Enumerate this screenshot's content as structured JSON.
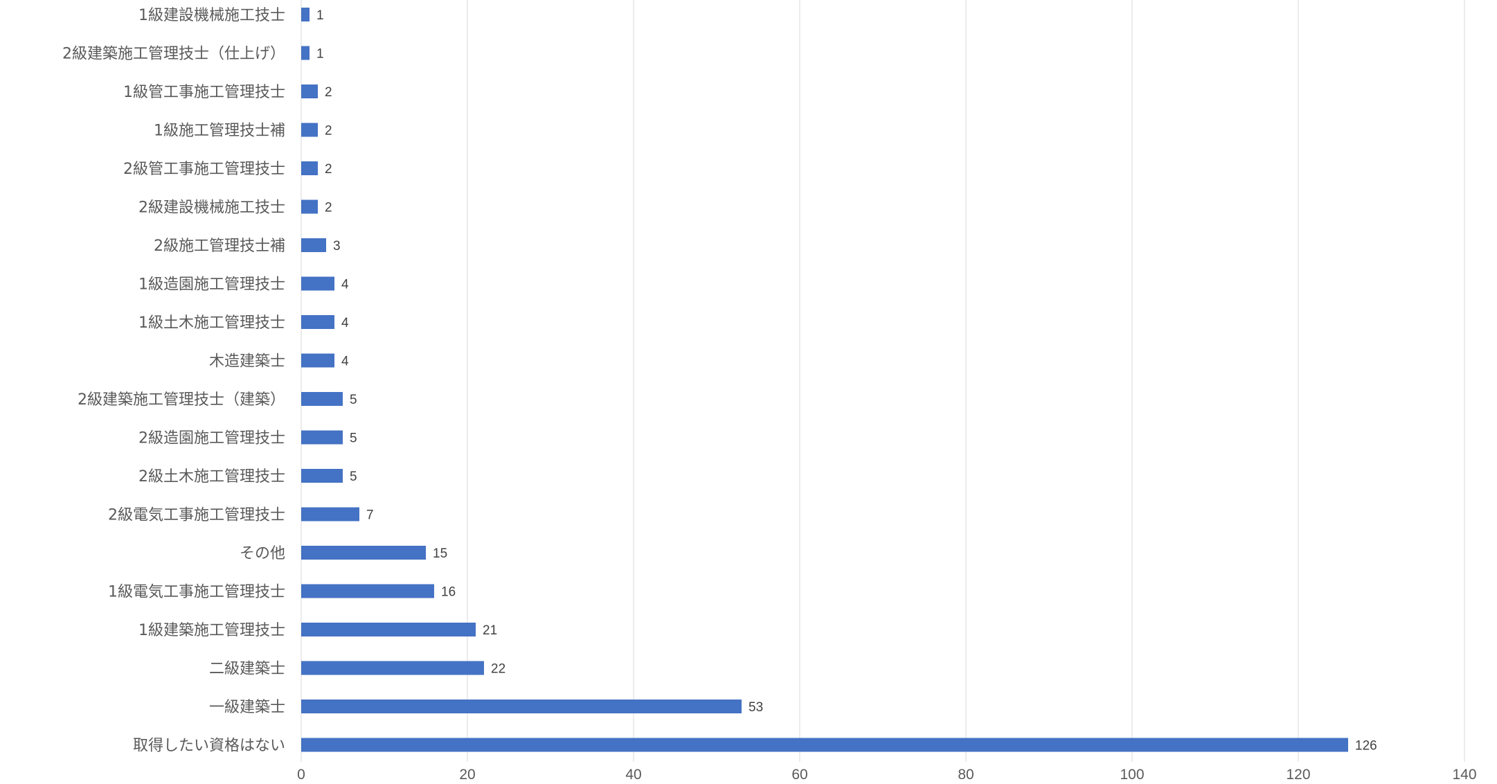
{
  "chart_data": {
    "type": "bar",
    "orientation": "horizontal",
    "categories": [
      "1級建設機械施工技士",
      "2級建築施工管理技士（仕上げ）",
      "1級管工事施工管理技士",
      "1級施工管理技士補",
      "2級管工事施工管理技士",
      "2級建設機械施工技士",
      "2級施工管理技士補",
      "1級造園施工管理技士",
      "1級土木施工管理技士",
      "木造建築士",
      "2級建築施工管理技士（建築）",
      "2級造園施工管理技士",
      "2級土木施工管理技士",
      "2級電気工事施工管理技士",
      "その他",
      "1級電気工事施工管理技士",
      "1級建築施工管理技士",
      "二級建築士",
      "一級建築士",
      "取得したい資格はない"
    ],
    "values": [
      1,
      1,
      2,
      2,
      2,
      2,
      3,
      4,
      4,
      4,
      5,
      5,
      5,
      7,
      15,
      16,
      21,
      22,
      53,
      126
    ],
    "value_labels": [
      "1",
      "1",
      "2",
      "2",
      "2",
      "2",
      "3",
      "4",
      "4",
      "4",
      "5",
      "5",
      "5",
      "7",
      "15",
      "16",
      "21",
      "22",
      "53",
      "126"
    ],
    "xlim": [
      0,
      140
    ],
    "x_ticks": [
      0,
      20,
      40,
      60,
      80,
      100,
      120,
      140
    ],
    "x_tick_labels": [
      "0",
      "20",
      "40",
      "60",
      "80",
      "100",
      "120",
      "140"
    ],
    "grid": "vertical",
    "legend": "none",
    "data_labels": true,
    "title": "",
    "xlabel": "",
    "ylabel": "",
    "bar_color": "#4472c4"
  }
}
